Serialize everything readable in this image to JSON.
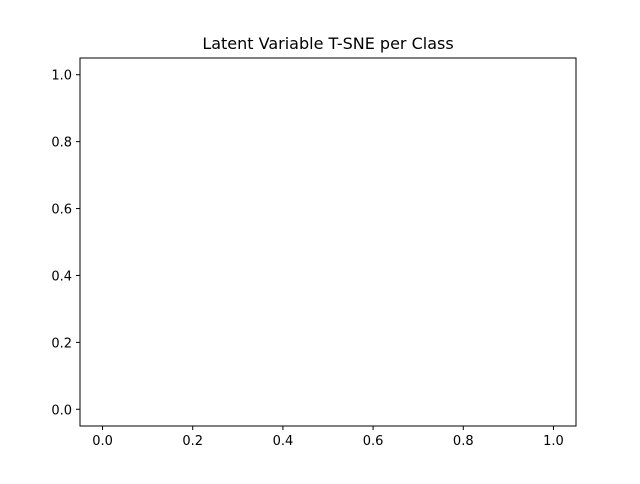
{
  "chart_data": {
    "type": "scatter",
    "title": "Latent Variable T-SNE per Class",
    "xlabel": "",
    "ylabel": "",
    "xlim": [
      -0.05,
      1.05
    ],
    "ylim": [
      -0.05,
      1.05
    ],
    "xticks": [
      "0.0",
      "0.2",
      "0.4",
      "0.6",
      "0.8",
      "1.0"
    ],
    "yticks": [
      "0.0",
      "0.2",
      "0.4",
      "0.6",
      "0.8",
      "1.0"
    ],
    "series": [],
    "grid": false,
    "legend": "none"
  }
}
